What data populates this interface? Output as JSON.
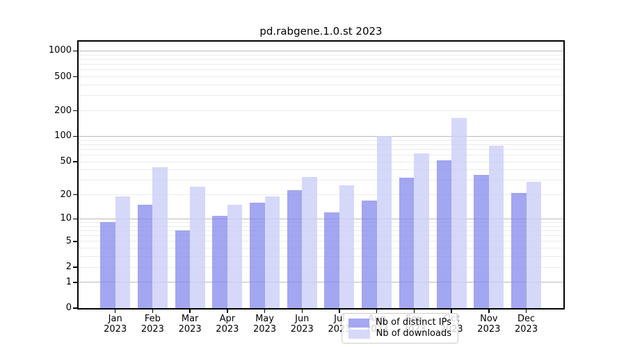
{
  "title": "pd.rabgene.1.0.st 2023",
  "legend": {
    "items": [
      {
        "label": "Nb of distinct IPs",
        "color": "#a4a7f1"
      },
      {
        "label": "Nb of downloads",
        "color": "#d6d8f9"
      }
    ]
  },
  "colors": {
    "bar_ips_fill": "rgba(127,131,235,0.72)",
    "bar_downloads_fill": "rgba(203,206,247,0.80)",
    "grid_major": "#b9b9b9",
    "grid_minor": "#ebebeb",
    "spine": "#000000"
  },
  "chart_data": {
    "type": "bar",
    "title": "pd.rabgene.1.0.st 2023",
    "categories": [
      "Jan 2023",
      "Feb 2023",
      "Mar 2023",
      "Apr 2023",
      "May 2023",
      "Jun 2023",
      "Jul 2023",
      "Aug 2023",
      "Sep 2023",
      "Oct 2023",
      "Nov 2023",
      "Dec 2023"
    ],
    "series": [
      {
        "name": "Nb of distinct IPs",
        "values": [
          9,
          15,
          7,
          11,
          16,
          23,
          12,
          17,
          32,
          52,
          35,
          21
        ]
      },
      {
        "name": "Nb of downloads",
        "values": [
          19,
          43,
          25,
          15,
          19,
          33,
          26,
          101,
          63,
          164,
          77,
          29
        ]
      }
    ],
    "xlabel": "",
    "ylabel": "",
    "yscale": "log1p",
    "ylim": [
      0,
      1285
    ],
    "yticks": [
      0,
      1,
      2,
      5,
      10,
      20,
      50,
      100,
      200,
      500,
      1000
    ],
    "grid_major": [
      1,
      10,
      100,
      1000
    ],
    "grid_minor": [
      2,
      3,
      4,
      5,
      6,
      7,
      8,
      9,
      20,
      30,
      40,
      50,
      60,
      70,
      80,
      90,
      200,
      300,
      400,
      500,
      600,
      700,
      800,
      900
    ],
    "grid": "on",
    "legend_position": "lower center"
  }
}
